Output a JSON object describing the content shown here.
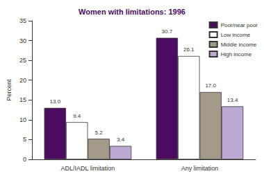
{
  "chart_data": {
    "type": "bar",
    "title": "Women with limitations: 1996",
    "ylabel": "Percent",
    "categories": [
      "ADL/IADL limitation",
      "Any limitation"
    ],
    "series": [
      {
        "name": "Poor/near poor",
        "color": "#4b0b5e",
        "values": [
          13.0,
          30.7
        ],
        "value_labels": [
          "13.0",
          "30.7"
        ]
      },
      {
        "name": "Low income",
        "color": "#ffffff",
        "values": [
          9.4,
          26.1
        ],
        "value_labels": [
          "9.4",
          "26.1"
        ]
      },
      {
        "name": "Middle income",
        "color": "#a39a8a",
        "values": [
          5.2,
          17.0
        ],
        "value_labels": [
          "5.2",
          "17.0"
        ]
      },
      {
        "name": "High income",
        "color": "#bca9d3",
        "values": [
          3.4,
          13.4
        ],
        "value_labels": [
          "3.4",
          "13.4"
        ]
      }
    ],
    "ylim": [
      0,
      35
    ],
    "yticks": [
      0,
      5,
      10,
      15,
      20,
      25,
      30,
      35
    ],
    "grid": false,
    "legend": "upper right",
    "data_labels": true
  }
}
